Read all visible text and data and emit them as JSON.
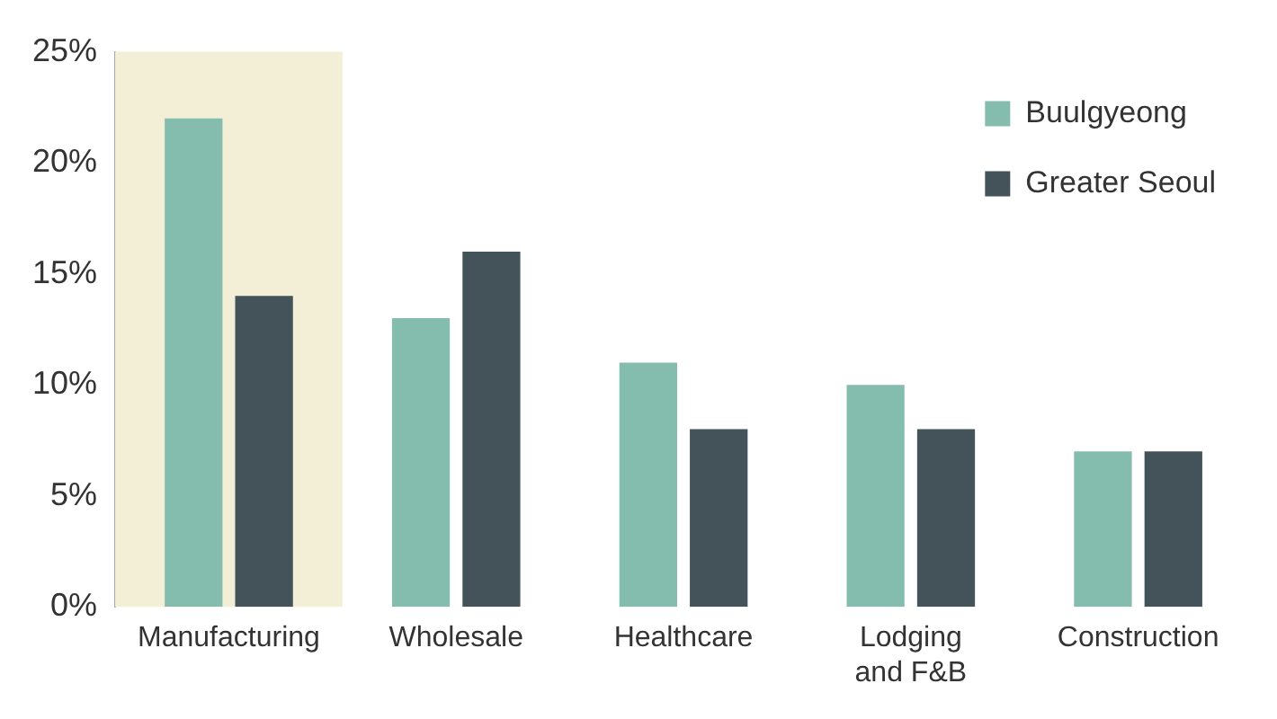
{
  "chart_data": {
    "type": "bar",
    "categories": [
      "Manufacturing",
      "Wholesale",
      "Healthcare",
      "Lodging and F&B",
      "Construction"
    ],
    "series": [
      {
        "name": "Buulgyeong",
        "color": "#84bcae",
        "values": [
          22,
          13,
          11,
          10,
          7
        ]
      },
      {
        "name": "Greater Seoul",
        "color": "#44525a",
        "values": [
          14,
          16,
          8,
          8,
          7
        ]
      }
    ],
    "ylim": [
      0,
      25
    ],
    "yticks": [
      {
        "value": 0,
        "label": "0%"
      },
      {
        "value": 5,
        "label": "5%"
      },
      {
        "value": 10,
        "label": "10%"
      },
      {
        "value": 15,
        "label": "15%"
      },
      {
        "value": 20,
        "label": "20%"
      },
      {
        "value": 25,
        "label": "25%"
      }
    ],
    "bands": [
      {
        "axis": "x",
        "from": "Manufacturing",
        "to": "Manufacturing",
        "color": "#f3efd6"
      }
    ],
    "legend": "top right",
    "grid": false
  }
}
